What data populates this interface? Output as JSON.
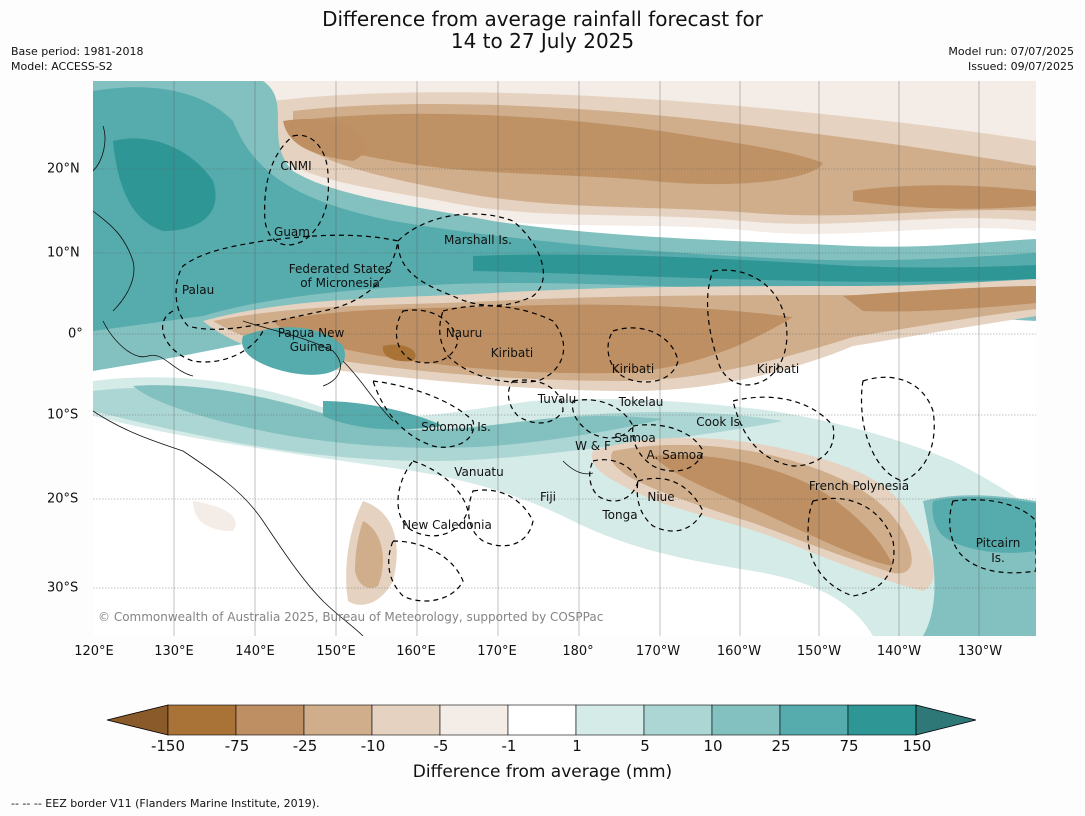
{
  "title_line1": "Difference from average rainfall forecast for",
  "title_line2": "14 to 27 July 2025",
  "meta_left": {
    "base_period": "Base period: 1981-2018",
    "model": "Model: ACCESS-S2"
  },
  "meta_right": {
    "model_run": "Model run: 07/07/2025",
    "issued": "Issued: 09/07/2025"
  },
  "lon_labels": [
    "120°E",
    "130°E",
    "140°E",
    "150°E",
    "160°E",
    "170°E",
    "180°",
    "170°W",
    "160°W",
    "150°W",
    "140°W",
    "130°W"
  ],
  "lat_labels": [
    "20°N",
    "10°N",
    "0°",
    "10°S",
    "20°S",
    "30°S"
  ],
  "region_labels": [
    {
      "text": "CNMI"
    },
    {
      "text": "Guam"
    },
    {
      "text": "Marshall Is."
    },
    {
      "text": "Federated States"
    },
    {
      "text": "of Micronesia"
    },
    {
      "text": "Palau"
    },
    {
      "text": "Papua New"
    },
    {
      "text": "Guinea"
    },
    {
      "text": "Nauru"
    },
    {
      "text": "Kiribati"
    },
    {
      "text": "Kiribati"
    },
    {
      "text": "Kiribati"
    },
    {
      "text": "Tuvalu"
    },
    {
      "text": "Tokelau"
    },
    {
      "text": "Cook Is."
    },
    {
      "text": "Solomon Is."
    },
    {
      "text": "Samoa"
    },
    {
      "text": "W & F"
    },
    {
      "text": "A. Samoa"
    },
    {
      "text": "Vanuatu"
    },
    {
      "text": "Fiji"
    },
    {
      "text": "Niue"
    },
    {
      "text": "French Polynesia"
    },
    {
      "text": "Tonga"
    },
    {
      "text": "New Caledonia"
    },
    {
      "text": "Pitcairn"
    },
    {
      "text": "Is."
    }
  ],
  "copyright": "© Commonwealth of Australia 2025, Bureau of Meteorology, supported by COSPPac",
  "colorbar": {
    "title": "Difference from average (mm)",
    "ticks": [
      "-150",
      "-75",
      "-25",
      "-10",
      "-5",
      "-1",
      "1",
      "5",
      "10",
      "25",
      "75",
      "150"
    ],
    "colors": [
      "#8b5a2b",
      "#a97338",
      "#bd8f62",
      "#d0ae8c",
      "#e6d2c0",
      "#f4ece6",
      "#ffffff",
      "#d5ebe8",
      "#acd6d4",
      "#82c1bf",
      "#56abac",
      "#2f9696",
      "#2f7878"
    ]
  },
  "footer": "--  --  -- EEZ border V11 (Flanders Marine Institute, 2019)."
}
